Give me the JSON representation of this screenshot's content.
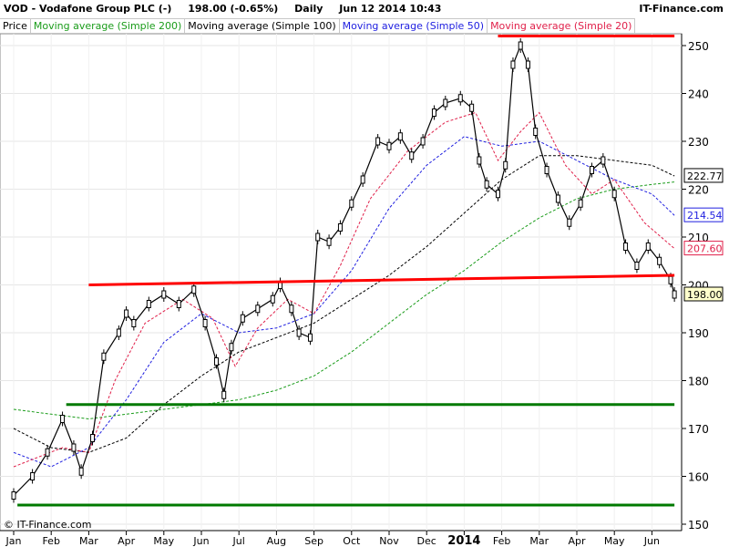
{
  "header": {
    "symbol": "VOD - Vodafone Group PLC (-)",
    "quote": "198.00 (-0.65%)",
    "timeframe": "Daily",
    "datetime": "Jun 12 2014 10:43",
    "site": "IT-Finance.com"
  },
  "legend": [
    {
      "label": "Price",
      "color": "#000000"
    },
    {
      "label": "Moving average (Simple 200)",
      "color": "#1a9c1a"
    },
    {
      "label": "Moving average (Simple 100)",
      "color": "#000000"
    },
    {
      "label": "Moving average (Simple 50)",
      "color": "#2020e0"
    },
    {
      "label": "Moving average (Simple 20)",
      "color": "#e0204a"
    }
  ],
  "copyright": "© IT-Finance.com",
  "chart_data": {
    "type": "line",
    "x_ticks": [
      "Jan",
      "Feb",
      "Mar",
      "Apr",
      "May",
      "Jun",
      "Jul",
      "Aug",
      "Sep",
      "Oct",
      "Nov",
      "Dec",
      "2014",
      "Feb",
      "Mar",
      "Apr",
      "May",
      "Jun"
    ],
    "y_ticks": [
      150,
      160,
      170,
      180,
      190,
      200,
      210,
      220,
      230,
      240,
      250
    ],
    "ylim": [
      150,
      252
    ],
    "value_labels": [
      {
        "text": "222.77",
        "value": 222.77,
        "color": "#000000"
      },
      {
        "text": "214.54",
        "value": 214.54,
        "color": "#2020e0"
      },
      {
        "text": "207.60",
        "value": 207.6,
        "color": "#e0204a"
      },
      {
        "text": "198.00",
        "value": 198.0,
        "color": "#000000",
        "highlight": "#ffffcc"
      }
    ],
    "price_series": [
      {
        "month": 0.0,
        "price": 156
      },
      {
        "month": 0.5,
        "price": 160
      },
      {
        "month": 0.9,
        "price": 165
      },
      {
        "month": 1.3,
        "price": 172
      },
      {
        "month": 1.6,
        "price": 166
      },
      {
        "month": 1.8,
        "price": 161
      },
      {
        "month": 2.1,
        "price": 168
      },
      {
        "month": 2.4,
        "price": 185
      },
      {
        "month": 2.8,
        "price": 190
      },
      {
        "month": 3.0,
        "price": 194
      },
      {
        "month": 3.2,
        "price": 192
      },
      {
        "month": 3.6,
        "price": 196
      },
      {
        "month": 4.0,
        "price": 198
      },
      {
        "month": 4.4,
        "price": 196
      },
      {
        "month": 4.8,
        "price": 199
      },
      {
        "month": 5.1,
        "price": 192
      },
      {
        "month": 5.4,
        "price": 184
      },
      {
        "month": 5.6,
        "price": 177
      },
      {
        "month": 5.8,
        "price": 187
      },
      {
        "month": 6.1,
        "price": 193
      },
      {
        "month": 6.5,
        "price": 195
      },
      {
        "month": 6.9,
        "price": 197
      },
      {
        "month": 7.1,
        "price": 200
      },
      {
        "month": 7.4,
        "price": 195
      },
      {
        "month": 7.6,
        "price": 190
      },
      {
        "month": 7.9,
        "price": 189
      },
      {
        "month": 8.1,
        "price": 210
      },
      {
        "month": 8.4,
        "price": 209
      },
      {
        "month": 8.7,
        "price": 212
      },
      {
        "month": 9.0,
        "price": 217
      },
      {
        "month": 9.3,
        "price": 222
      },
      {
        "month": 9.7,
        "price": 230
      },
      {
        "month": 10.0,
        "price": 229
      },
      {
        "month": 10.3,
        "price": 231
      },
      {
        "month": 10.6,
        "price": 227
      },
      {
        "month": 10.9,
        "price": 230
      },
      {
        "month": 11.2,
        "price": 236
      },
      {
        "month": 11.5,
        "price": 238
      },
      {
        "month": 11.9,
        "price": 239
      },
      {
        "month": 12.2,
        "price": 237
      },
      {
        "month": 12.4,
        "price": 226
      },
      {
        "month": 12.6,
        "price": 221
      },
      {
        "month": 12.9,
        "price": 219
      },
      {
        "month": 13.1,
        "price": 225
      },
      {
        "month": 13.3,
        "price": 246
      },
      {
        "month": 13.5,
        "price": 250
      },
      {
        "month": 13.7,
        "price": 246
      },
      {
        "month": 13.9,
        "price": 232
      },
      {
        "month": 14.2,
        "price": 224
      },
      {
        "month": 14.5,
        "price": 218
      },
      {
        "month": 14.8,
        "price": 213
      },
      {
        "month": 15.1,
        "price": 217
      },
      {
        "month": 15.4,
        "price": 224
      },
      {
        "month": 15.7,
        "price": 226
      },
      {
        "month": 16.0,
        "price": 219
      },
      {
        "month": 16.3,
        "price": 208
      },
      {
        "month": 16.6,
        "price": 204
      },
      {
        "month": 16.9,
        "price": 208
      },
      {
        "month": 17.2,
        "price": 205
      },
      {
        "month": 17.5,
        "price": 201
      },
      {
        "month": 17.6,
        "price": 198
      }
    ],
    "ma20": [
      {
        "month": 0.0,
        "value": 162
      },
      {
        "month": 1.3,
        "value": 166
      },
      {
        "month": 2.0,
        "value": 165
      },
      {
        "month": 2.7,
        "value": 180
      },
      {
        "month": 3.5,
        "value": 192
      },
      {
        "month": 4.5,
        "value": 197
      },
      {
        "month": 5.3,
        "value": 193
      },
      {
        "month": 5.9,
        "value": 183
      },
      {
        "month": 6.5,
        "value": 191
      },
      {
        "month": 7.3,
        "value": 197
      },
      {
        "month": 8.0,
        "value": 194
      },
      {
        "month": 8.7,
        "value": 204
      },
      {
        "month": 9.5,
        "value": 218
      },
      {
        "month": 10.5,
        "value": 228
      },
      {
        "month": 11.5,
        "value": 234
      },
      {
        "month": 12.3,
        "value": 236
      },
      {
        "month": 12.9,
        "value": 226
      },
      {
        "month": 13.5,
        "value": 232
      },
      {
        "month": 14.0,
        "value": 236
      },
      {
        "month": 14.7,
        "value": 225
      },
      {
        "month": 15.4,
        "value": 219
      },
      {
        "month": 16.0,
        "value": 222
      },
      {
        "month": 16.8,
        "value": 213
      },
      {
        "month": 17.6,
        "value": 207.6
      }
    ],
    "ma50": [
      {
        "month": 0.0,
        "value": 165
      },
      {
        "month": 1.0,
        "value": 162
      },
      {
        "month": 2.0,
        "value": 166
      },
      {
        "month": 3.0,
        "value": 176
      },
      {
        "month": 4.0,
        "value": 188
      },
      {
        "month": 5.0,
        "value": 194
      },
      {
        "month": 6.0,
        "value": 190
      },
      {
        "month": 7.0,
        "value": 191
      },
      {
        "month": 8.0,
        "value": 194
      },
      {
        "month": 9.0,
        "value": 203
      },
      {
        "month": 10.0,
        "value": 216
      },
      {
        "month": 11.0,
        "value": 225
      },
      {
        "month": 12.0,
        "value": 231
      },
      {
        "month": 13.0,
        "value": 229
      },
      {
        "month": 14.0,
        "value": 230
      },
      {
        "month": 15.0,
        "value": 226
      },
      {
        "month": 16.0,
        "value": 222
      },
      {
        "month": 17.0,
        "value": 219
      },
      {
        "month": 17.6,
        "value": 214.54
      }
    ],
    "ma100": [
      {
        "month": 0.0,
        "value": 170
      },
      {
        "month": 1.0,
        "value": 166
      },
      {
        "month": 2.0,
        "value": 165
      },
      {
        "month": 3.0,
        "value": 168
      },
      {
        "month": 4.0,
        "value": 175
      },
      {
        "month": 5.0,
        "value": 181
      },
      {
        "month": 6.0,
        "value": 186
      },
      {
        "month": 7.0,
        "value": 189
      },
      {
        "month": 8.0,
        "value": 192
      },
      {
        "month": 9.0,
        "value": 197
      },
      {
        "month": 10.0,
        "value": 202
      },
      {
        "month": 11.0,
        "value": 208
      },
      {
        "month": 12.0,
        "value": 215
      },
      {
        "month": 13.0,
        "value": 222
      },
      {
        "month": 14.0,
        "value": 227
      },
      {
        "month": 15.0,
        "value": 227
      },
      {
        "month": 16.0,
        "value": 226
      },
      {
        "month": 17.0,
        "value": 225
      },
      {
        "month": 17.6,
        "value": 222.77
      }
    ],
    "ma200": [
      {
        "month": 0.0,
        "value": 174
      },
      {
        "month": 1.0,
        "value": 173
      },
      {
        "month": 2.0,
        "value": 172
      },
      {
        "month": 3.0,
        "value": 173
      },
      {
        "month": 4.0,
        "value": 174
      },
      {
        "month": 5.0,
        "value": 175
      },
      {
        "month": 6.0,
        "value": 176
      },
      {
        "month": 7.0,
        "value": 178
      },
      {
        "month": 8.0,
        "value": 181
      },
      {
        "month": 9.0,
        "value": 186
      },
      {
        "month": 10.0,
        "value": 192
      },
      {
        "month": 11.0,
        "value": 198
      },
      {
        "month": 12.0,
        "value": 203
      },
      {
        "month": 13.0,
        "value": 209
      },
      {
        "month": 14.0,
        "value": 214
      },
      {
        "month": 15.0,
        "value": 218
      },
      {
        "month": 16.0,
        "value": 220
      },
      {
        "month": 17.0,
        "value": 221
      },
      {
        "month": 17.6,
        "value": 221.5
      }
    ],
    "trendlines": [
      {
        "color": "#ff0000",
        "from": {
          "month": 2.0,
          "value": 200
        },
        "to": {
          "month": 17.6,
          "value": 202
        }
      },
      {
        "color": "#ff0000",
        "from": {
          "month": 12.9,
          "value": 252
        },
        "to": {
          "month": 17.6,
          "value": 252
        }
      },
      {
        "color": "#007a00",
        "from": {
          "month": 1.4,
          "value": 175
        },
        "to": {
          "month": 17.6,
          "value": 175
        }
      },
      {
        "color": "#007a00",
        "from": {
          "month": 0.1,
          "value": 154
        },
        "to": {
          "month": 17.6,
          "value": 154
        }
      }
    ]
  }
}
